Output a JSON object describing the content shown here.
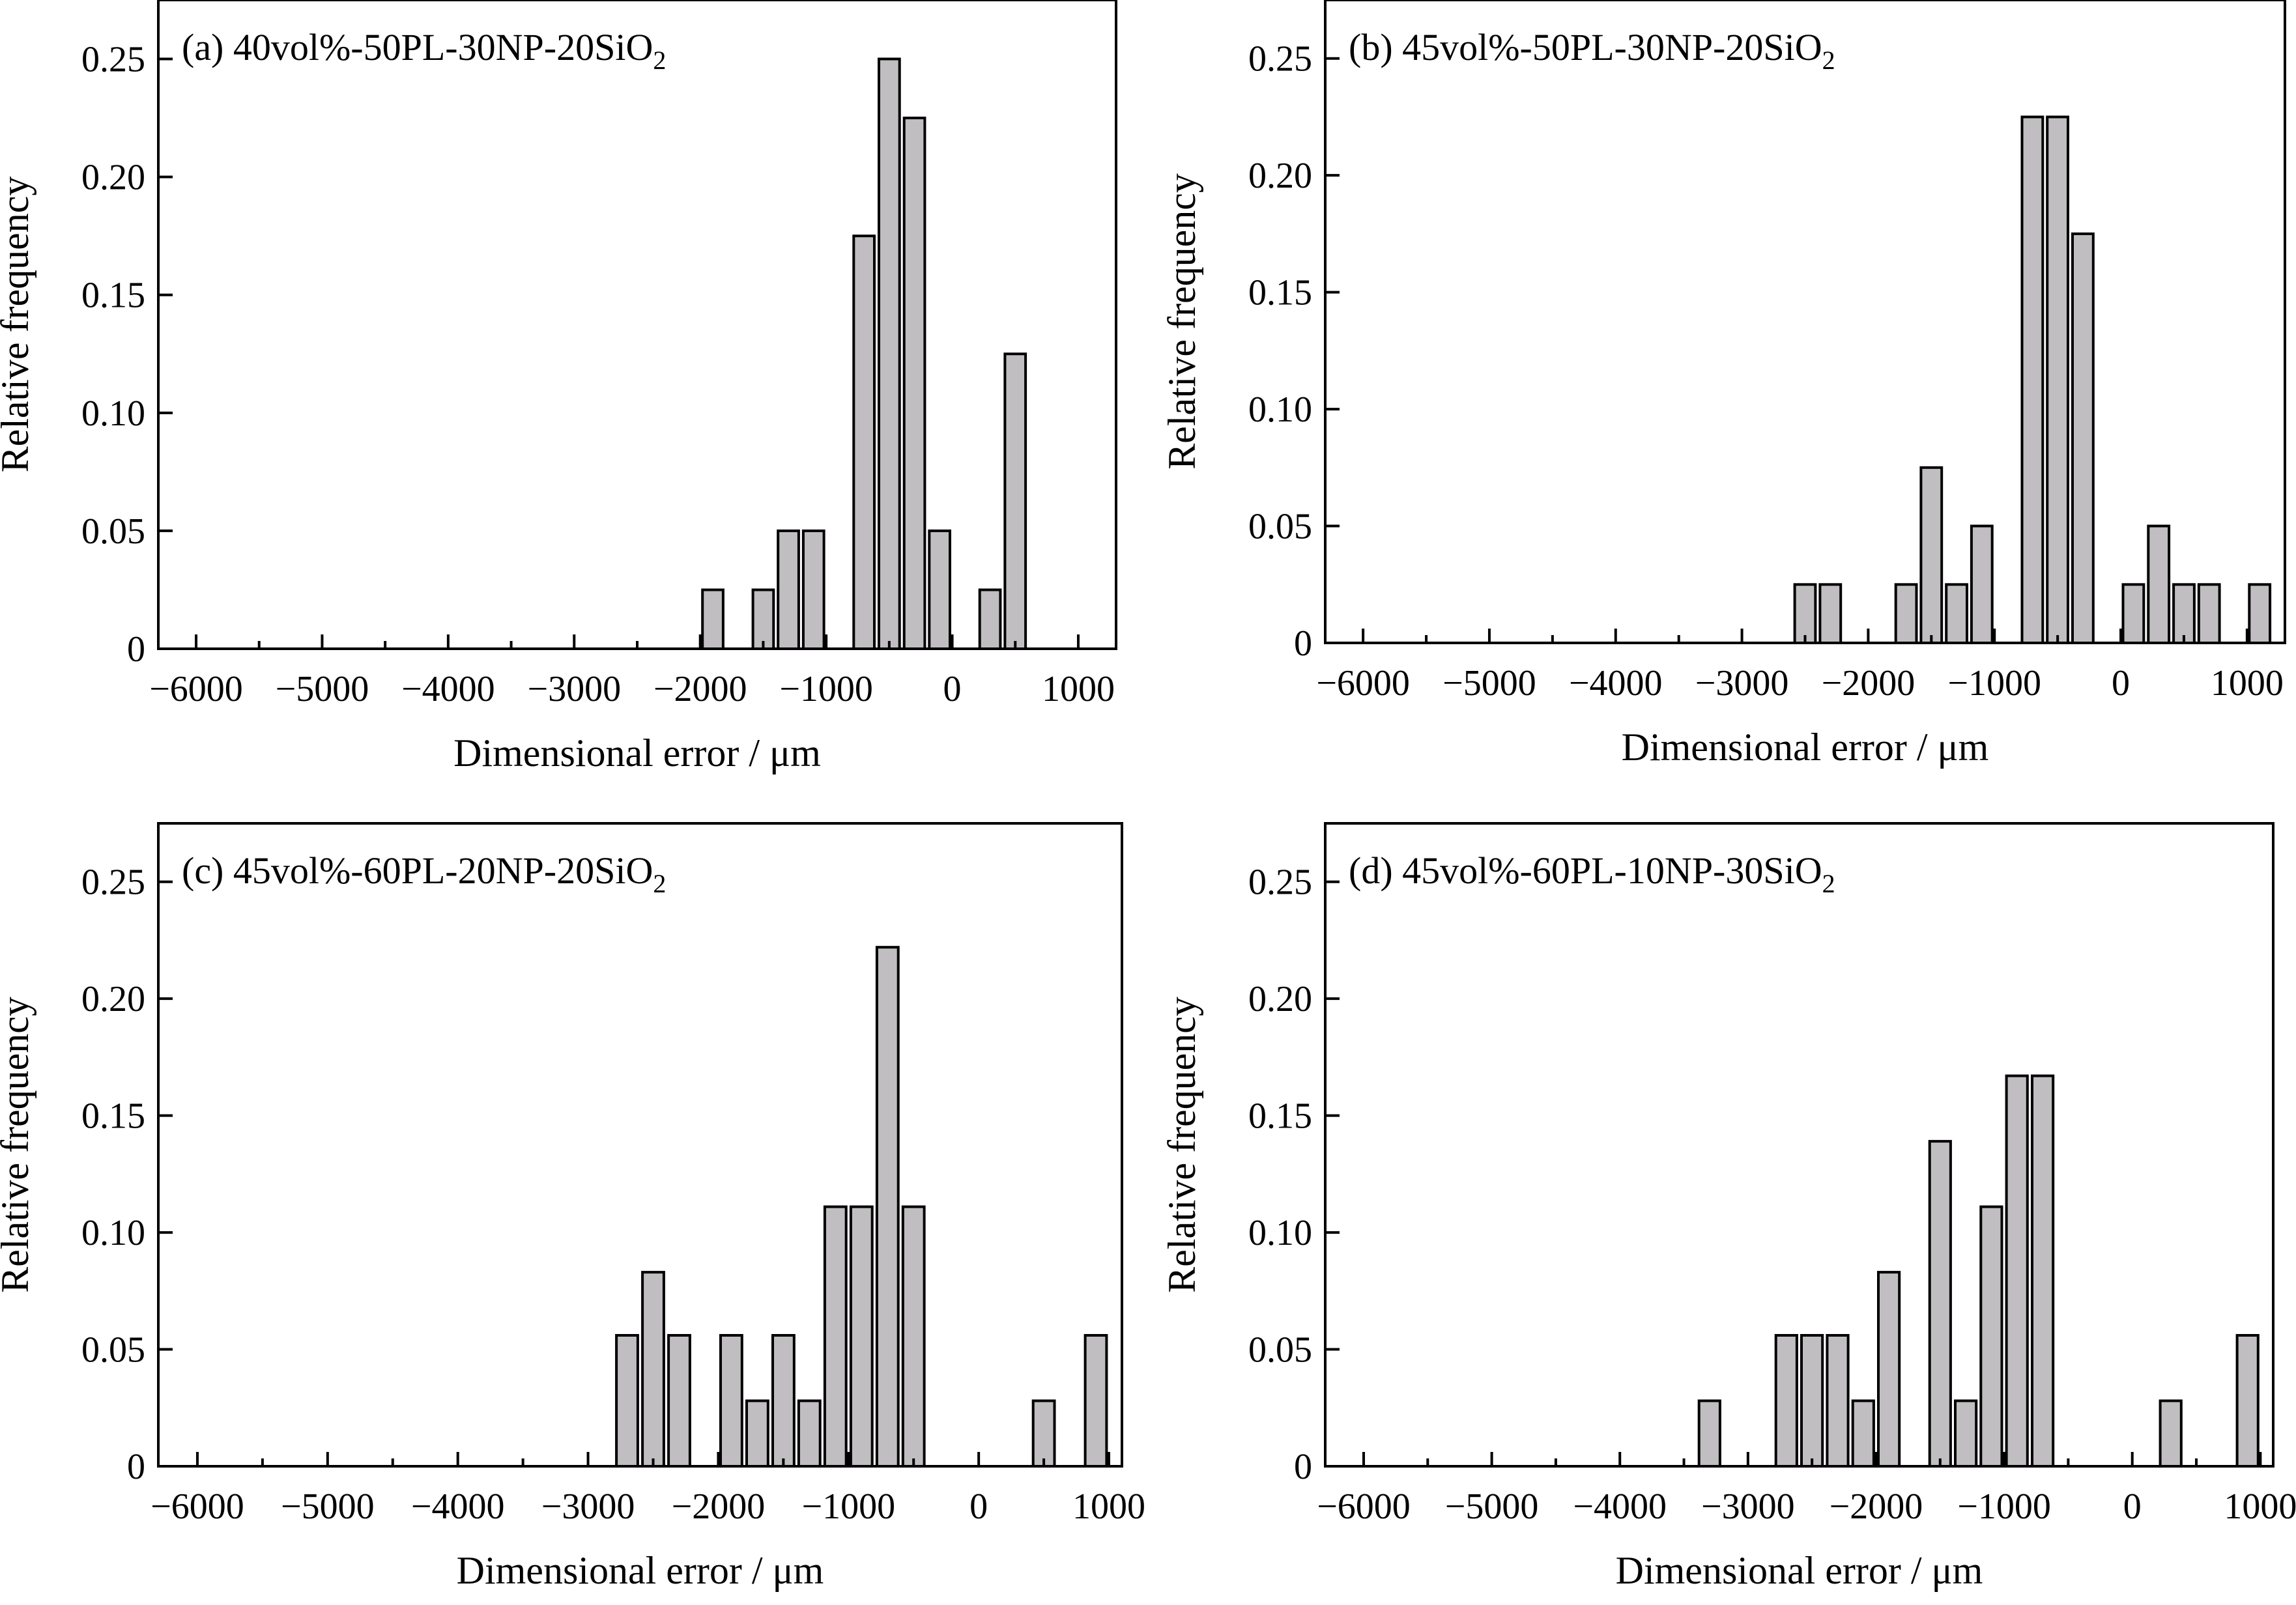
{
  "chart_data": [
    {
      "type": "bar",
      "title": "(a) 40vol%-50PL-30NP-20SiO2",
      "title_parts": {
        "prefix": "(a) 40vol%-50PL-30NP-20SiO",
        "subscript": "2"
      },
      "xlabel": "Dimensional error / μm",
      "ylabel": "Relative frequency",
      "xlim": [
        -6300,
        1300
      ],
      "ylim": [
        0,
        0.275
      ],
      "bin_width": 200,
      "xticks": [
        -6000,
        -5000,
        -4000,
        -3000,
        -2000,
        -1000,
        0,
        1000
      ],
      "xtick_labels": [
        "−6000",
        "−5000",
        "−4000",
        "−3000",
        "−2000",
        "−1000",
        "0",
        "1000"
      ],
      "yticks": [
        0,
        0.05,
        0.1,
        0.15,
        0.2,
        0.25
      ],
      "ytick_labels": [
        "0",
        "0.05",
        "0.10",
        "0.15",
        "0.20",
        "0.25"
      ],
      "x": [
        -1900,
        -1500,
        -1300,
        -1100,
        -700,
        -500,
        -300,
        -100,
        300,
        500
      ],
      "values": [
        0.025,
        0.025,
        0.05,
        0.05,
        0.175,
        0.25,
        0.225,
        0.05,
        0.025,
        0.125
      ]
    },
    {
      "type": "bar",
      "title": "(b) 45vol%-50PL-30NP-20SiO2",
      "title_parts": {
        "prefix": "(b) 45vol%-50PL-30NP-20SiO",
        "subscript": "2"
      },
      "xlabel": "Dimensional error / μm",
      "ylabel": "Relative frequency",
      "xlim": [
        -6300,
        1300
      ],
      "ylim": [
        0,
        0.275
      ],
      "bin_width": 200,
      "xticks": [
        -6000,
        -5000,
        -4000,
        -3000,
        -2000,
        -1000,
        0,
        1000
      ],
      "xtick_labels": [
        "−6000",
        "−5000",
        "−4000",
        "−3000",
        "−2000",
        "−1000",
        "0",
        "1000"
      ],
      "yticks": [
        0,
        0.05,
        0.1,
        0.15,
        0.2,
        0.25
      ],
      "ytick_labels": [
        "0",
        "0.05",
        "0.10",
        "0.15",
        "0.20",
        "0.25"
      ],
      "x": [
        -2500,
        -2300,
        -1700,
        -1500,
        -1300,
        -1100,
        -700,
        -500,
        -300,
        100,
        300,
        500,
        700,
        1100
      ],
      "values": [
        0.025,
        0.025,
        0.025,
        0.075,
        0.025,
        0.05,
        0.225,
        0.225,
        0.175,
        0.025,
        0.05,
        0.025,
        0.025,
        0.025
      ]
    },
    {
      "type": "bar",
      "title": "(c) 45vol%-60PL-20NP-20SiO2",
      "title_parts": {
        "prefix": "(c) 45vol%-60PL-20NP-20SiO",
        "subscript": "2"
      },
      "xlabel": "Dimensional error / μm",
      "ylabel": "Relative frequency",
      "xlim": [
        -6300,
        1100
      ],
      "ylim": [
        0,
        0.275
      ],
      "bin_width": 200,
      "xticks": [
        -6000,
        -5000,
        -4000,
        -3000,
        -2000,
        -1000,
        0,
        1000
      ],
      "xtick_labels": [
        "−6000",
        "−5000",
        "−4000",
        "−3000",
        "−2000",
        "−1000",
        "0",
        "1000"
      ],
      "yticks": [
        0,
        0.05,
        0.1,
        0.15,
        0.2,
        0.25
      ],
      "ytick_labels": [
        "0",
        "0.05",
        "0.10",
        "0.15",
        "0.20",
        "0.25"
      ],
      "x": [
        -2700,
        -2500,
        -2300,
        -1900,
        -1700,
        -1500,
        -1300,
        -1100,
        -900,
        -700,
        -500,
        500,
        900
      ],
      "values": [
        0.056,
        0.083,
        0.056,
        0.056,
        0.028,
        0.056,
        0.028,
        0.111,
        0.111,
        0.222,
        0.111,
        0.028,
        0.056
      ]
    },
    {
      "type": "bar",
      "title": "(d) 45vol%-60PL-10NP-30SiO2",
      "title_parts": {
        "prefix": "(d) 45vol%-60PL-10NP-30SiO",
        "subscript": "2"
      },
      "xlabel": "Dimensional error / μm",
      "ylabel": "Relative frequency",
      "xlim": [
        -6300,
        1100
      ],
      "ylim": [
        0,
        0.275
      ],
      "bin_width": 200,
      "xticks": [
        -6000,
        -5000,
        -4000,
        -3000,
        -2000,
        -1000,
        0,
        1000
      ],
      "xtick_labels": [
        "−6000",
        "−5000",
        "−4000",
        "−3000",
        "−2000",
        "−1000",
        "0",
        "1000"
      ],
      "yticks": [
        0,
        0.05,
        0.1,
        0.15,
        0.2,
        0.25
      ],
      "ytick_labels": [
        "0",
        "0.05",
        "0.10",
        "0.15",
        "0.20",
        "0.25"
      ],
      "x": [
        -3300,
        -2700,
        -2500,
        -2300,
        -2100,
        -1900,
        -1500,
        -1300,
        -1100,
        -900,
        -700,
        300,
        900
      ],
      "values": [
        0.028,
        0.056,
        0.056,
        0.056,
        0.028,
        0.083,
        0.139,
        0.028,
        0.111,
        0.167,
        0.167,
        0.028,
        0.056
      ]
    }
  ]
}
